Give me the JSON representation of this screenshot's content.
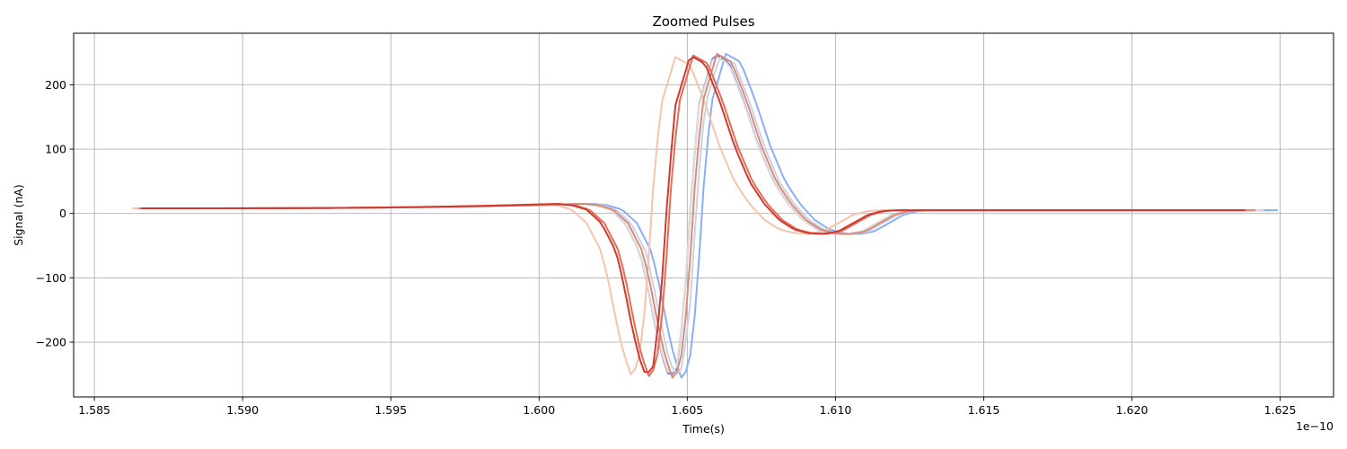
{
  "chart_data": {
    "type": "line",
    "title": "Zoomed Pulses",
    "xlabel": "Time(s)",
    "ylabel": "Signal (nA)",
    "x_offset_label": "1e−10",
    "x_scale": 1e-10,
    "xlim": [
      1.5843,
      1.6268
    ],
    "ylim": [
      -285,
      280
    ],
    "grid": true,
    "legend": false,
    "x_ticks": [
      1.585,
      1.59,
      1.595,
      1.6,
      1.605,
      1.61,
      1.615,
      1.62,
      1.625
    ],
    "x_tick_labels": [
      "1.585",
      "1.590",
      "1.595",
      "1.600",
      "1.605",
      "1.610",
      "1.615",
      "1.620",
      "1.625"
    ],
    "y_ticks": [
      -200,
      -100,
      0,
      100,
      200
    ],
    "y_tick_labels": [
      "−200",
      "−100",
      "0",
      "100",
      "200"
    ],
    "pulse_shape": {
      "t": [
        -3.0,
        -2.5,
        -2.0,
        -1.5,
        -1.0,
        -0.75,
        -0.5,
        -0.25,
        0.0,
        0.25,
        0.5,
        0.75,
        1.0,
        1.5,
        2.0,
        2.5,
        3.0,
        3.5,
        4.0,
        4.5,
        5.0,
        5.5,
        6.0,
        6.5,
        7.0,
        7.5,
        8.0,
        8.5,
        9.0
      ],
      "v": [
        15,
        13,
        6,
        -15,
        -60,
        -110,
        -170,
        -222,
        -255,
        -240,
        -140,
        40,
        170,
        248,
        235,
        175,
        105,
        50,
        15,
        -10,
        -25,
        -31,
        -32,
        -28,
        -15,
        -2,
        4,
        5,
        5
      ]
    },
    "series": [
      {
        "color": "#5b78e0",
        "x_start": 1.5865,
        "x_end": 1.6246,
        "t_min": 1.6044,
        "baseline": 8,
        "peak_scale": 1.0
      },
      {
        "color": "#8cadf8",
        "x_start": 1.5865,
        "x_end": 1.625,
        "t_min": 1.6048,
        "baseline": 8,
        "peak_scale": 1.0
      },
      {
        "color": "#c9d3e6",
        "x_start": 1.5865,
        "x_end": 1.6245,
        "t_min": 1.6046,
        "baseline": 8,
        "peak_scale": 0.99
      },
      {
        "color": "#e0dbd7",
        "x_start": 1.5865,
        "x_end": 1.6243,
        "t_min": 1.6044,
        "baseline": 8,
        "peak_scale": 0.99
      },
      {
        "color": "#f5c4ac",
        "x_start": 1.5863,
        "x_end": 1.624,
        "t_min": 1.6031,
        "baseline": 8,
        "peak_scale": 0.98
      },
      {
        "color": "#d88c78",
        "x_start": 1.5865,
        "x_end": 1.6242,
        "t_min": 1.6045,
        "baseline": 8,
        "peak_scale": 1.0
      },
      {
        "color": "#e36f55",
        "x_start": 1.5866,
        "x_end": 1.6239,
        "t_min": 1.6037,
        "baseline": 8,
        "peak_scale": 0.99
      },
      {
        "color": "#cf3b32",
        "x_start": 1.5866,
        "x_end": 1.6239,
        "t_min": 1.6036,
        "baseline": 8,
        "peak_scale": 0.99
      }
    ]
  }
}
